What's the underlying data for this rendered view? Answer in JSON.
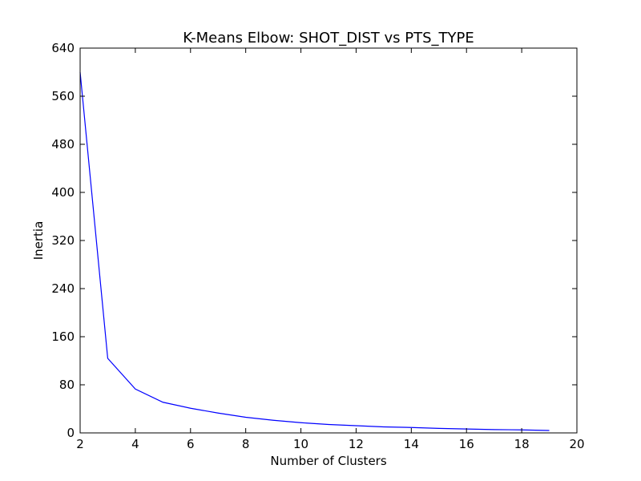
{
  "chart_data": {
    "type": "line",
    "title": "K-Means Elbow: SHOT_DIST vs PTS_TYPE",
    "xlabel": "Number of Clusters",
    "ylabel": "Inertia",
    "xlim": [
      2,
      20
    ],
    "ylim": [
      0,
      640
    ],
    "xticks": [
      "2",
      "4",
      "6",
      "8",
      "10",
      "12",
      "14",
      "16",
      "18",
      "20"
    ],
    "yticks": [
      "0",
      "80",
      "160",
      "240",
      "320",
      "400",
      "480",
      "560",
      "640"
    ],
    "grid": false,
    "line_color": "#0000ff",
    "x": [
      2,
      3,
      4,
      5,
      6,
      7,
      8,
      9,
      10,
      11,
      12,
      13,
      14,
      15,
      16,
      17,
      18,
      19
    ],
    "series": [
      {
        "values": [
          600,
          124,
          73,
          51,
          41,
          33,
          26,
          21,
          17,
          14,
          12,
          10,
          9,
          7.5,
          6.5,
          5.5,
          5,
          4
        ]
      }
    ]
  }
}
